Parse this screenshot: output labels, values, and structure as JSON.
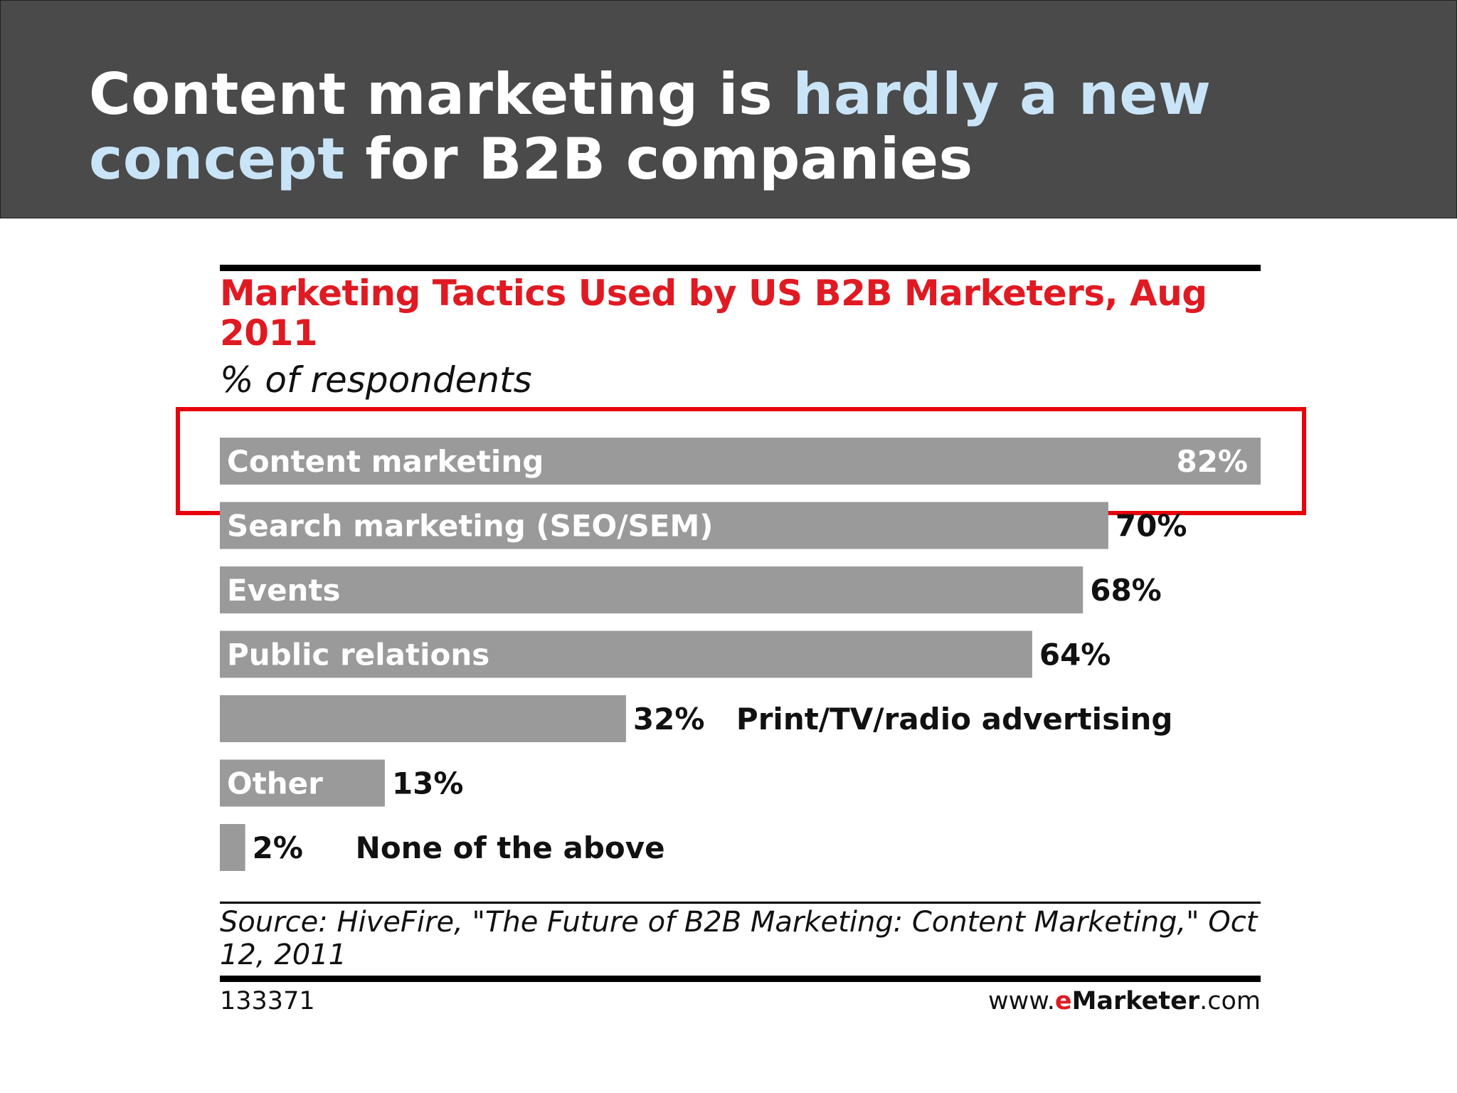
{
  "slide": {
    "headline_part1": "Content marketing is ",
    "headline_highlight1": "hardly a new",
    "headline_highlight2": "concept",
    "headline_part2": " for B2B companies"
  },
  "colors": {
    "header_bg": "#4a4a4b",
    "highlight": "#c9e4f6",
    "title_red": "#e01a22",
    "bar": "#9a9a9b",
    "callout_box": "#e8000b"
  },
  "chart_data": {
    "type": "bar",
    "orientation": "horizontal",
    "title": "Marketing Tactics Used by US B2B Marketers, Aug 2011",
    "subtitle": "% of respondents",
    "categories": [
      "Content marketing",
      "Search marketing (SEO/SEM)",
      "Events",
      "Public relations",
      "Print/TV/radio advertising",
      "Other",
      "None of the above"
    ],
    "values": [
      82,
      70,
      68,
      64,
      32,
      13,
      2
    ],
    "value_labels": [
      "82%",
      "70%",
      "68%",
      "64%",
      "32%",
      "13%",
      "2%"
    ],
    "xlim": [
      0,
      82
    ],
    "grid": false,
    "highlighted_category": "Content marketing"
  },
  "footer": {
    "source": "Source: HiveFire, \"The Future of B2B Marketing: Content Marketing,\" Oct 12, 2011",
    "chart_id": "133371",
    "brand_prefix": "www.",
    "brand_e": "e",
    "brand_marketer": "Marketer",
    "brand_suffix": ".com"
  }
}
